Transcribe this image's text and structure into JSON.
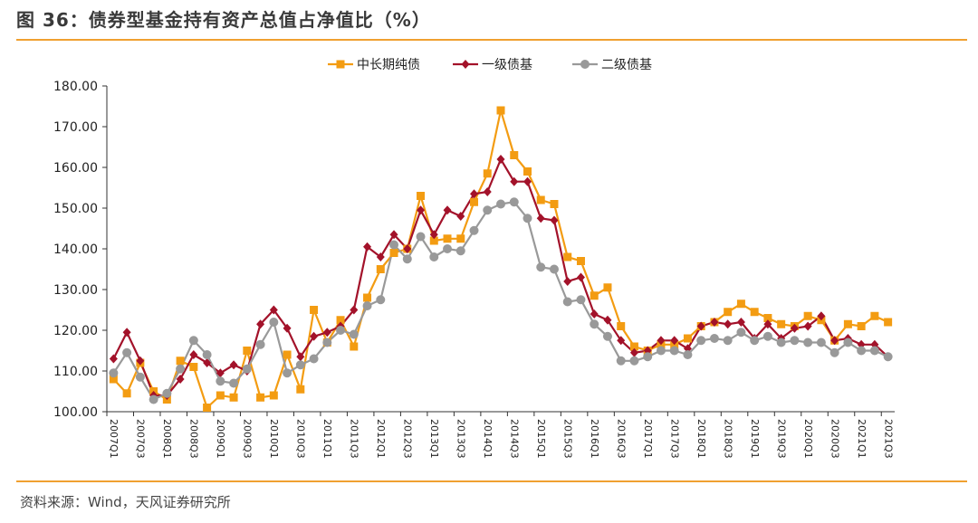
{
  "title": "图 36：债券型基金持有资产总值占净值比（%）",
  "source": "资料来源：Wind，天风证券研究所",
  "chart_data": {
    "type": "line",
    "ylim": [
      100,
      180
    ],
    "yticks": [
      "100.00",
      "110.00",
      "120.00",
      "130.00",
      "140.00",
      "150.00",
      "160.00",
      "170.00",
      "180.00"
    ],
    "categories": [
      "2007Q1",
      "2007Q2",
      "2007Q3",
      "2007Q4",
      "2008Q1",
      "2008Q2",
      "2008Q3",
      "2008Q4",
      "2009Q1",
      "2009Q2",
      "2009Q3",
      "2009Q4",
      "2010Q1",
      "2010Q2",
      "2010Q3",
      "2010Q4",
      "2011Q1",
      "2011Q2",
      "2011Q3",
      "2011Q4",
      "2012Q1",
      "2012Q2",
      "2012Q3",
      "2012Q4",
      "2013Q1",
      "2013Q2",
      "2013Q3",
      "2013Q4",
      "2014Q1",
      "2014Q2",
      "2014Q3",
      "2014Q4",
      "2015Q1",
      "2015Q2",
      "2015Q3",
      "2015Q4",
      "2016Q1",
      "2016Q2",
      "2016Q3",
      "2016Q4",
      "2017Q1",
      "2017Q2",
      "2017Q3",
      "2017Q4",
      "2018Q1",
      "2018Q2",
      "2018Q3",
      "2018Q4",
      "2019Q1",
      "2019Q2",
      "2019Q3",
      "2019Q4",
      "2020Q1",
      "2020Q2",
      "2020Q3",
      "2020Q4",
      "2021Q1",
      "2021Q2",
      "2021Q3"
    ],
    "tick_labels": [
      "2007Q1",
      "2007Q3",
      "2008Q1",
      "2008Q3",
      "2009Q1",
      "2009Q3",
      "2010Q1",
      "2010Q3",
      "2011Q1",
      "2011Q3",
      "2012Q1",
      "2012Q3",
      "2013Q1",
      "2013Q3",
      "2014Q1",
      "2014Q3",
      "2015Q1",
      "2015Q3",
      "2016Q1",
      "2016Q3",
      "2017Q1",
      "2017Q3",
      "2018Q1",
      "2018Q3",
      "2019Q1",
      "2019Q3",
      "2020Q1",
      "2020Q3",
      "2021Q1",
      "2021Q3"
    ],
    "legend_position": "top-center",
    "series": [
      {
        "name": "中长期纯债",
        "color": "#f39c12",
        "marker": "square",
        "values": [
          108,
          104.5,
          112,
          105,
          103,
          112.5,
          111,
          101,
          104,
          103.5,
          115,
          103.5,
          104,
          114,
          105.5,
          125,
          117,
          122.5,
          116,
          128,
          135,
          139,
          140,
          153,
          142,
          142.5,
          142.5,
          151.5,
          158.5,
          174,
          163,
          159,
          152,
          151,
          138,
          137,
          128.5,
          130.5,
          121,
          116,
          115,
          116.5,
          116.5,
          118,
          121,
          122,
          124.5,
          126.5,
          124.5,
          123,
          121.5,
          121,
          123.5,
          122.5,
          117.5,
          121.5,
          121,
          123.5,
          122
        ]
      },
      {
        "name": "一级债基",
        "color": "#a3122a",
        "marker": "diamond",
        "values": [
          113,
          119.5,
          112.5,
          104,
          104,
          108,
          114,
          112,
          109.5,
          111.5,
          110,
          121.5,
          125,
          120.5,
          113.5,
          118.5,
          119.5,
          121,
          125,
          140.5,
          138,
          143.5,
          140,
          149.5,
          143.5,
          149.5,
          148,
          153.5,
          154,
          162,
          156.5,
          156.5,
          147.5,
          147,
          132,
          133,
          124,
          122.5,
          117.5,
          114.5,
          115,
          117.5,
          117.5,
          115.5,
          121,
          122,
          121.5,
          122,
          118,
          121.5,
          118,
          120.5,
          121,
          123.5,
          117.5,
          118,
          116.5,
          116.5,
          113.5
        ]
      },
      {
        "name": "二级债基",
        "color": "#999999",
        "marker": "circle",
        "values": [
          109.5,
          114.5,
          108.5,
          103,
          104.5,
          110.5,
          117.5,
          114,
          107.5,
          107,
          110.5,
          116.5,
          122,
          109.5,
          111.5,
          113,
          117,
          120,
          119,
          126,
          127.5,
          141,
          137.5,
          143,
          138,
          140,
          139.5,
          144.5,
          149.5,
          151,
          151.5,
          147.5,
          135.5,
          135,
          127,
          127.5,
          121.5,
          118.5,
          112.5,
          112.5,
          113.5,
          115,
          115,
          114,
          117.5,
          118,
          117.5,
          119.5,
          117.5,
          118.5,
          117,
          117.5,
          117,
          117,
          114.5,
          117,
          115,
          115,
          113.5
        ]
      }
    ]
  }
}
